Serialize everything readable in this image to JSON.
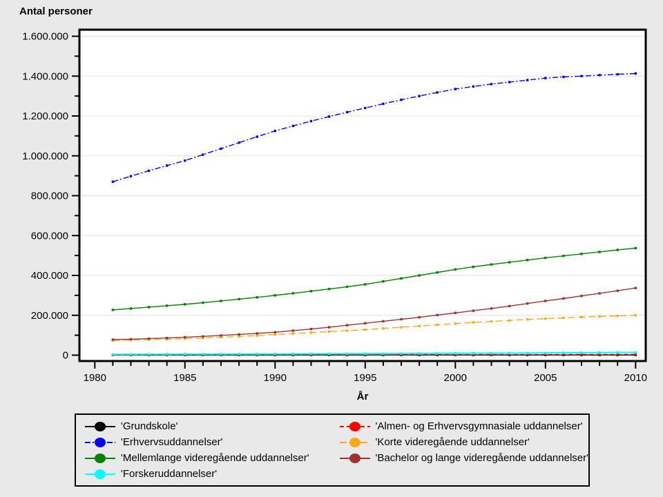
{
  "page": {
    "background": "#e9e9e9",
    "plot_background": "#ffffff",
    "frame_color": "#000000",
    "gridline_color": "#e0e0e0"
  },
  "chart_data": {
    "type": "line",
    "title": "Antal personer",
    "xlabel": "År",
    "ylabel": "",
    "x": [
      1981,
      1982,
      1983,
      1984,
      1985,
      1986,
      1987,
      1988,
      1989,
      1990,
      1991,
      1992,
      1993,
      1994,
      1995,
      1996,
      1997,
      1998,
      1999,
      2000,
      2001,
      2002,
      2003,
      2004,
      2005,
      2006,
      2007,
      2008,
      2009,
      2010
    ],
    "xlim": [
      1980,
      2010
    ],
    "ylim": [
      0,
      1600000
    ],
    "xtick_major": [
      1980,
      1985,
      1990,
      1995,
      2000,
      2005,
      2010
    ],
    "xtick_labels": [
      "1980",
      "1985",
      "1990",
      "1995",
      "2000",
      "2005",
      "2010"
    ],
    "xtick_minor_step": 1,
    "ytick_major": [
      0,
      200000,
      400000,
      600000,
      800000,
      1000000,
      1200000,
      1400000,
      1600000
    ],
    "ytick_labels": [
      "0",
      "200.000",
      "400.000",
      "600.000",
      "800.000",
      "1.000.000",
      "1.200.000",
      "1.400.000",
      "1.600.000"
    ],
    "ytick_minor_step": 100000,
    "grid": "horizontal-major",
    "legend_position": "bottom",
    "legend_columns": [
      [
        0,
        1,
        2,
        3
      ],
      [
        4,
        5,
        6
      ]
    ],
    "draw_order": [
      0,
      4,
      3,
      5,
      6,
      2,
      1
    ],
    "series": [
      {
        "name": "'Grundskole'",
        "slug": "grundskole",
        "color": "#000000",
        "dash": "",
        "values": [
          500,
          500,
          500,
          500,
          500,
          500,
          500,
          500,
          500,
          500,
          500,
          500,
          500,
          500,
          500,
          500,
          500,
          500,
          500,
          500,
          500,
          500,
          500,
          500,
          500,
          500,
          500,
          500,
          500,
          500
        ]
      },
      {
        "name": "'Erhvervsuddannelser'",
        "slug": "erhvervsuddannelser",
        "color": "#0000ff",
        "dash": "8 3 2 3",
        "values": [
          870000,
          898000,
          925000,
          951000,
          976000,
          1006000,
          1036000,
          1066000,
          1096000,
          1125000,
          1150000,
          1174000,
          1197000,
          1219000,
          1240000,
          1261000,
          1281000,
          1300000,
          1318000,
          1335000,
          1348000,
          1360000,
          1370000,
          1380000,
          1390000,
          1396000,
          1400000,
          1405000,
          1409000,
          1413000
        ]
      },
      {
        "name": "'Mellemlange videregående uddannelser'",
        "slug": "mellemlange-videregaende-uddannelser",
        "color": "#008000",
        "dash": "",
        "values": [
          227000,
          234000,
          241000,
          248000,
          255000,
          263000,
          272000,
          281000,
          290000,
          300000,
          310000,
          321000,
          332000,
          343000,
          355000,
          370000,
          385000,
          400000,
          415000,
          430000,
          443000,
          455000,
          466000,
          477000,
          488000,
          498000,
          508000,
          518000,
          528000,
          537000
        ]
      },
      {
        "name": "'Forskeruddannelser'",
        "slug": "forskeruddannelser",
        "color": "#00ffff",
        "dash": "",
        "values": [
          4000,
          4300,
          4600,
          4900,
          5200,
          5400,
          5600,
          5800,
          6000,
          6200,
          6500,
          6800,
          7100,
          7400,
          7700,
          8000,
          8300,
          8600,
          9000,
          9400,
          9800,
          10200,
          10600,
          11000,
          11500,
          12000,
          12500,
          13000,
          13500,
          14000
        ]
      },
      {
        "name": "'Almen- og Erhvervsgymnasiale uddannelser'",
        "slug": "almen-og-erhvervsgymnasiale-uddannelser",
        "color": "#ff0000",
        "dash": "6 4",
        "values": [
          1000,
          1100,
          1200,
          1300,
          1400,
          1500,
          1600,
          1700,
          1800,
          1900,
          2000,
          2100,
          2200,
          2300,
          2400,
          2500,
          2600,
          2700,
          2800,
          2900,
          3000,
          3100,
          3200,
          3300,
          3400,
          3500,
          3600,
          3700,
          3800,
          4000
        ]
      },
      {
        "name": "'Korte videregående uddannelser'",
        "slug": "korte-videregaende-uddannelser",
        "color": "#ffa81e",
        "dash": "10 5",
        "values": [
          74000,
          76000,
          78000,
          80000,
          82000,
          86000,
          90000,
          94000,
          98000,
          103000,
          108000,
          113000,
          118000,
          123000,
          128000,
          134000,
          140000,
          146000,
          152000,
          158000,
          164000,
          169000,
          174000,
          179000,
          183000,
          187000,
          191000,
          194000,
          197000,
          200000
        ]
      },
      {
        "name": "'Bachelor og lange videregående uddannelser'",
        "slug": "bachelor-og-lange-videregaende-uddannelser",
        "color": "#a03232",
        "dash": "",
        "values": [
          78000,
          80000,
          83000,
          86000,
          90000,
          94000,
          99000,
          104000,
          109000,
          115000,
          123000,
          131000,
          140000,
          150000,
          160000,
          170000,
          180000,
          190000,
          201000,
          212000,
          223000,
          234000,
          246000,
          259000,
          272000,
          284000,
          297000,
          310000,
          323000,
          337000
        ]
      }
    ]
  }
}
